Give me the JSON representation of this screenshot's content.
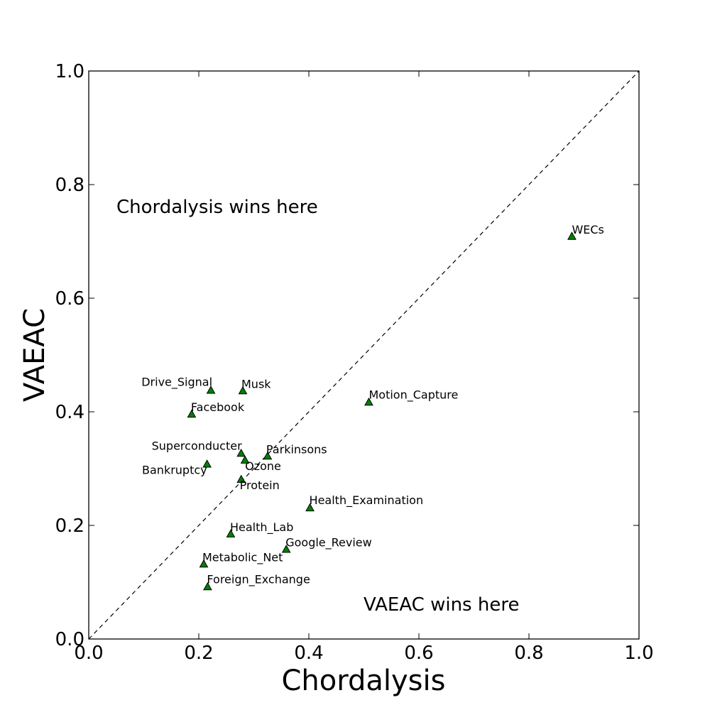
{
  "chart_data": {
    "type": "scatter",
    "xlabel": "Chordalysis",
    "ylabel": "VAEAC",
    "xlim": [
      0.0,
      1.0
    ],
    "ylim": [
      0.0,
      1.0
    ],
    "x_ticks": [
      "0.0",
      "0.2",
      "0.4",
      "0.6",
      "0.8",
      "1.0"
    ],
    "y_ticks": [
      "0.0",
      "0.2",
      "0.4",
      "0.6",
      "0.8",
      "1.0"
    ],
    "grid": false,
    "marker": "triangle",
    "marker_color": "#008000",
    "diagonal_line": "y = x, dashed",
    "annotations": [
      {
        "text": "Chordalysis wins here",
        "x": 0.05,
        "y": 0.75
      },
      {
        "text": "VAEAC wins here",
        "x": 0.5,
        "y": 0.05
      }
    ],
    "points": [
      {
        "name": "WECs",
        "x": 0.878,
        "y": 0.709
      },
      {
        "name": "Motion_Capture",
        "x": 0.509,
        "y": 0.417
      },
      {
        "name": "Drive_Signal",
        "x": 0.222,
        "y": 0.438
      },
      {
        "name": "Musk",
        "x": 0.28,
        "y": 0.437
      },
      {
        "name": "Facebook",
        "x": 0.187,
        "y": 0.396
      },
      {
        "name": "Superconducter",
        "x": 0.277,
        "y": 0.327
      },
      {
        "name": "Parkinsons",
        "x": 0.325,
        "y": 0.322
      },
      {
        "name": "Ozone",
        "x": 0.284,
        "y": 0.315
      },
      {
        "name": "Bankruptcy",
        "x": 0.215,
        "y": 0.308
      },
      {
        "name": "Protein",
        "x": 0.277,
        "y": 0.281
      },
      {
        "name": "Health_Examination",
        "x": 0.402,
        "y": 0.231
      },
      {
        "name": "Health_Lab",
        "x": 0.258,
        "y": 0.185
      },
      {
        "name": "Google_Review",
        "x": 0.359,
        "y": 0.158
      },
      {
        "name": "Metabolic_Net",
        "x": 0.209,
        "y": 0.132
      },
      {
        "name": "Foreign_Exchange",
        "x": 0.216,
        "y": 0.092
      }
    ]
  }
}
